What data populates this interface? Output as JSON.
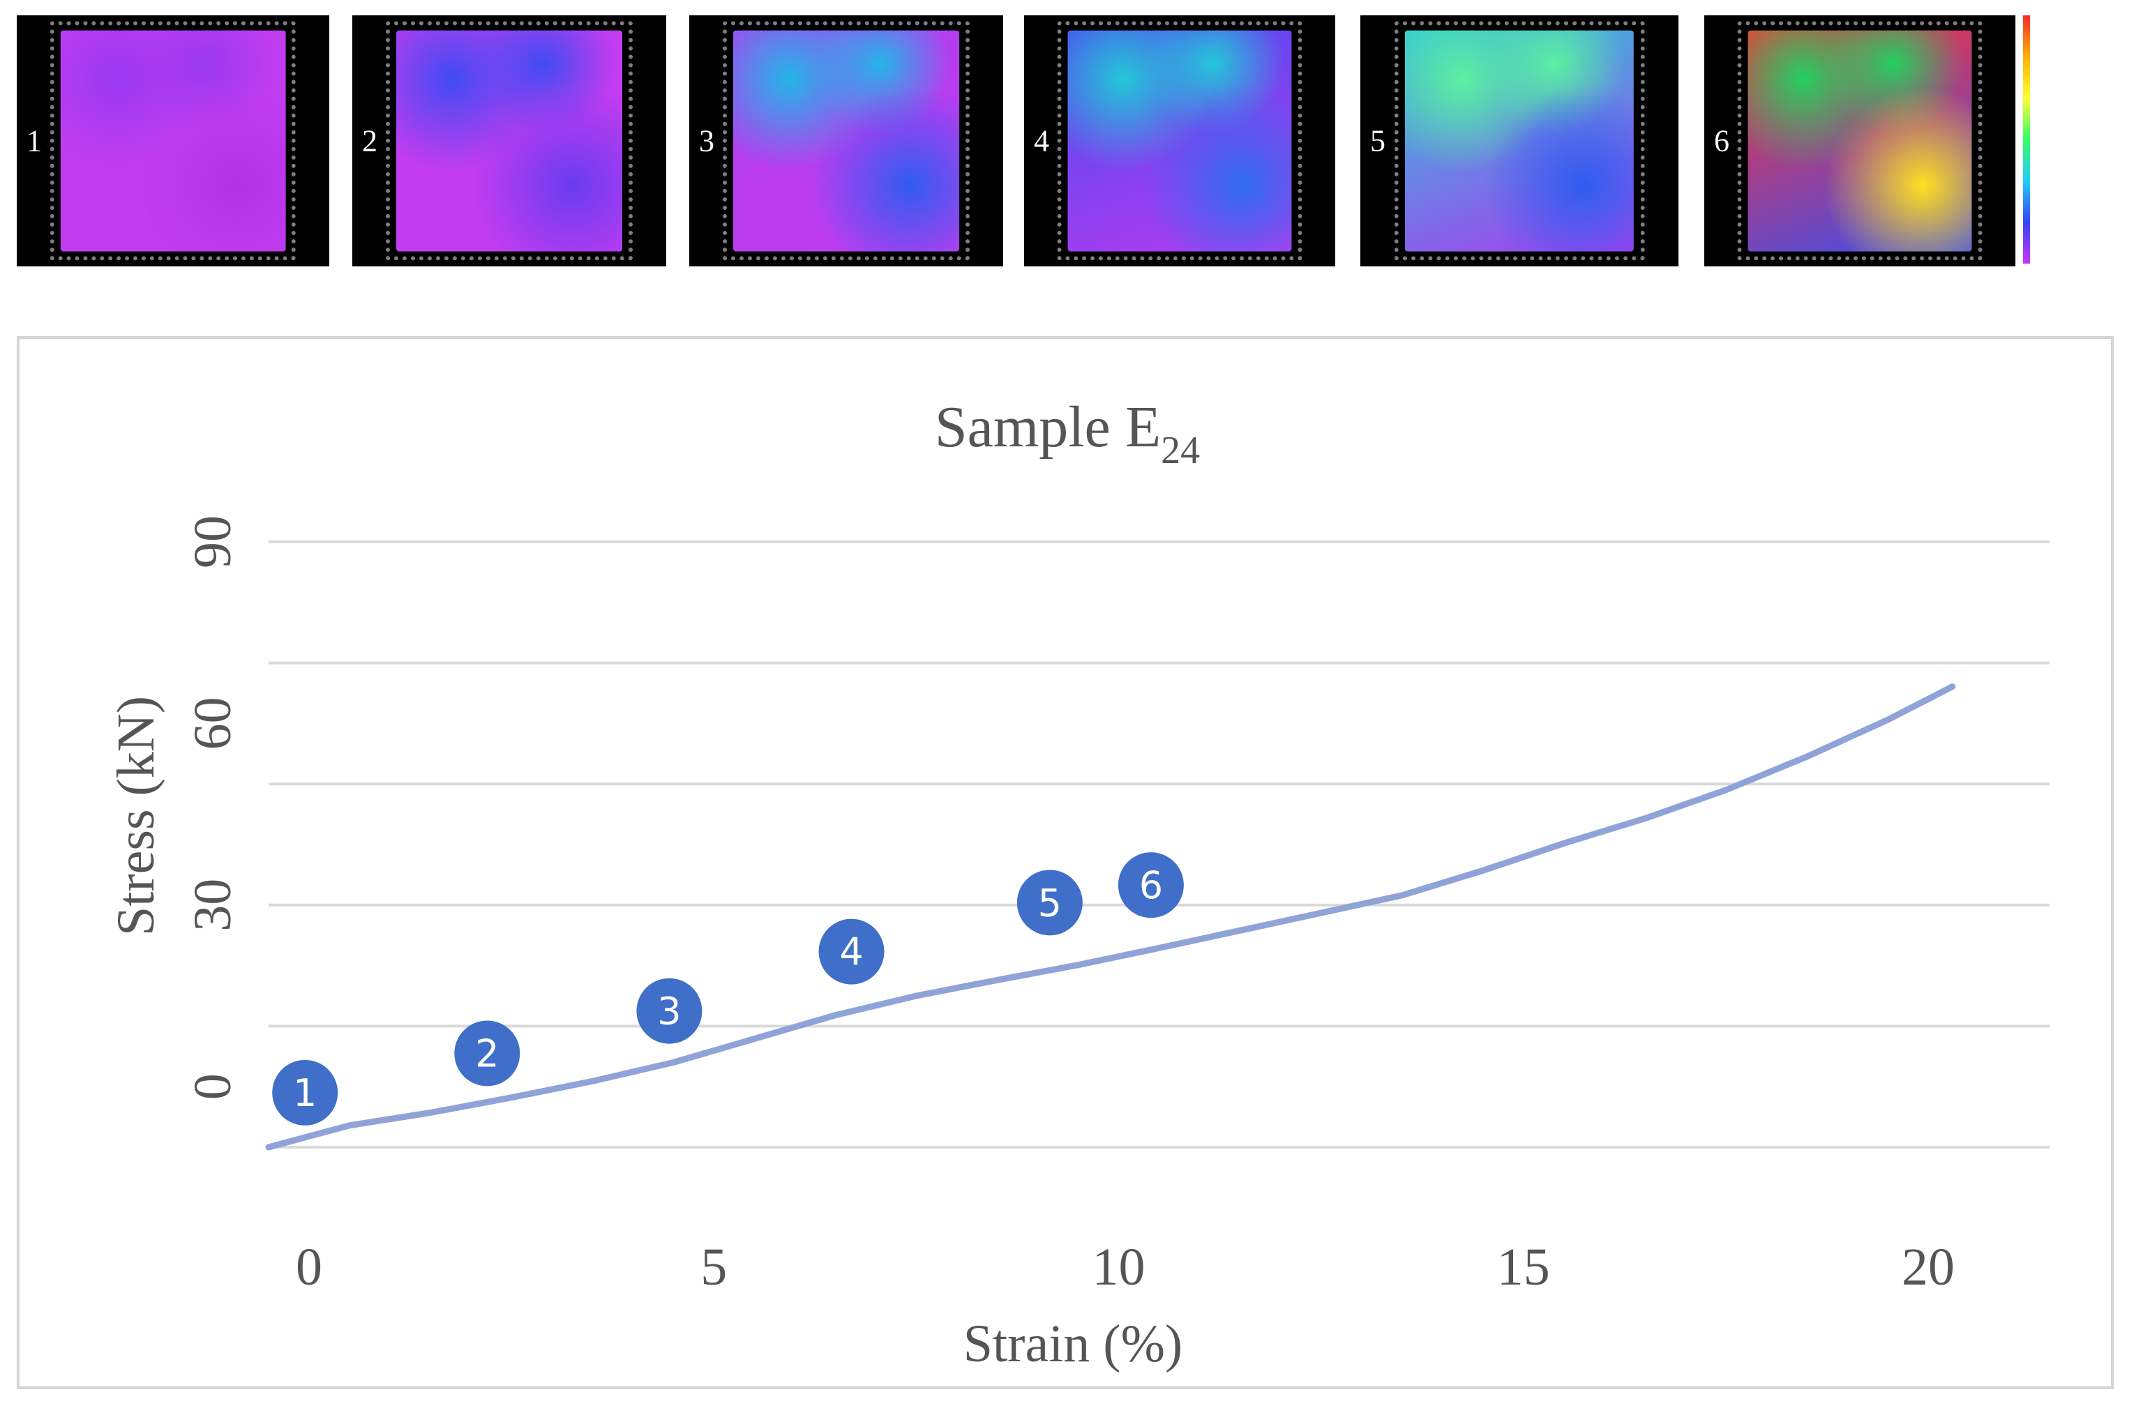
{
  "dic_strip": {
    "frames": [
      {
        "label": "1",
        "colors": [
          "#c23cf0",
          "#b233e8",
          "#9a3af0",
          "#c23cf0"
        ]
      },
      {
        "label": "2",
        "colors": [
          "#c23cf0",
          "#6a3cf0",
          "#3f4cf2",
          "#c23cf0"
        ]
      },
      {
        "label": "3",
        "colors": [
          "#b03cf0",
          "#2f5cf0",
          "#22b6e8",
          "#c23cf0"
        ]
      },
      {
        "label": "4",
        "colors": [
          "#4a48f0",
          "#2f6cf0",
          "#22c8d8",
          "#b83cf0"
        ]
      },
      {
        "label": "5",
        "colors": [
          "#2fc8d8",
          "#2f5cf0",
          "#5cf0a0",
          "#a83cf0"
        ]
      },
      {
        "label": "6",
        "colors": [
          "#ff3030",
          "#ffe020",
          "#22d060",
          "#3c50f0"
        ]
      }
    ]
  },
  "chart_data": {
    "type": "line",
    "title_main": "Sample E",
    "title_sub": "24",
    "xlabel": "Strain (%)",
    "ylabel": "Stress (kN)",
    "xlim": [
      -0.5,
      21.5
    ],
    "ylim": [
      -10,
      90
    ],
    "x_ticks": [
      0,
      5,
      10,
      15,
      20
    ],
    "y_ticks": [
      0,
      30,
      60,
      90
    ],
    "gridlines_y": [
      -10,
      10,
      30,
      50,
      70,
      90
    ],
    "line_color": "#8fa3d8",
    "marker_color": "#3f6fc8",
    "series": [
      {
        "x": [
          -0.5,
          0.5,
          1.5,
          2.5,
          3.5,
          4.5,
          5.5,
          6.5,
          7.5,
          8.5,
          9.5,
          10.5,
          11.5,
          12.5,
          13.5,
          14.5,
          15.5,
          16.5,
          17.5,
          18.5,
          19.5,
          20.3
        ],
        "y": [
          -10,
          -6.4,
          -4.3,
          -1.8,
          0.9,
          4.0,
          7.9,
          11.8,
          15.0,
          17.6,
          20.1,
          22.9,
          25.8,
          28.7,
          31.6,
          35.7,
          40.2,
          44.3,
          49.0,
          54.5,
          60.6,
          66.1
        ]
      }
    ],
    "markers": [
      {
        "label": "1",
        "x": -0.05,
        "y": -1.0
      },
      {
        "label": "2",
        "x": 2.2,
        "y": 5.5
      },
      {
        "label": "3",
        "x": 4.45,
        "y": 12.5
      },
      {
        "label": "4",
        "x": 6.7,
        "y": 22.3
      },
      {
        "label": "5",
        "x": 9.15,
        "y": 30.4
      },
      {
        "label": "6",
        "x": 10.4,
        "y": 33.3
      }
    ]
  }
}
